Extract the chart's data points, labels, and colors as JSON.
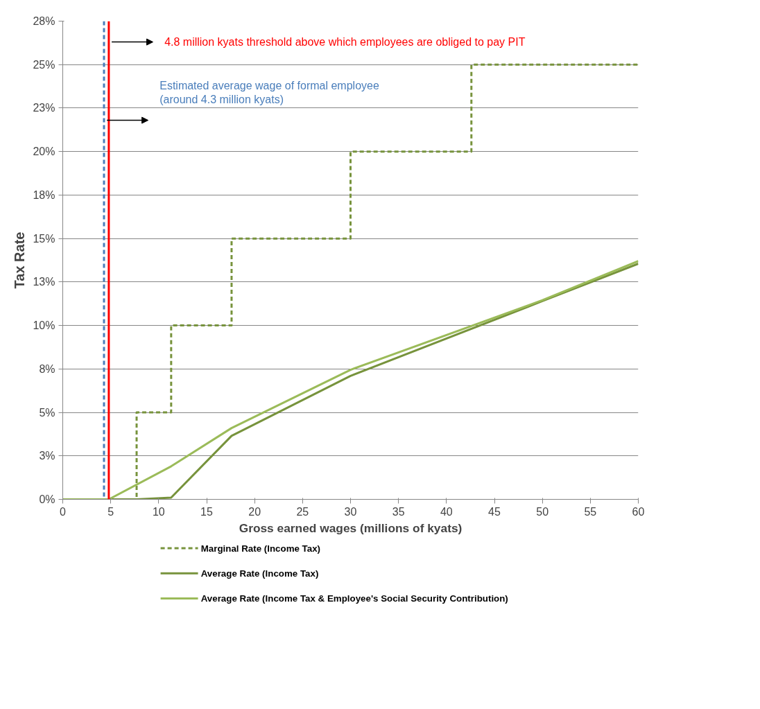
{
  "chart_data": {
    "type": "line",
    "xlabel": "Gross earned wages (millions of kyats)",
    "ylabel": "Tax Rate",
    "xlim": [
      0,
      60
    ],
    "xticks": [
      0,
      5,
      10,
      15,
      20,
      25,
      30,
      35,
      40,
      45,
      50,
      55,
      60
    ],
    "ylim": [
      0,
      27.5
    ],
    "yticks": [
      {
        "value": 0,
        "label": "0%"
      },
      {
        "value": 2.5,
        "label": "3%"
      },
      {
        "value": 5,
        "label": "5%"
      },
      {
        "value": 7.5,
        "label": "8%"
      },
      {
        "value": 10,
        "label": "10%"
      },
      {
        "value": 12.5,
        "label": "13%"
      },
      {
        "value": 15,
        "label": "15%"
      },
      {
        "value": 17.5,
        "label": "18%"
      },
      {
        "value": 20,
        "label": "20%"
      },
      {
        "value": 22.5,
        "label": "23%"
      },
      {
        "value": 25,
        "label": "25%"
      },
      {
        "value": 27.5,
        "label": "28%"
      }
    ],
    "grid": "y",
    "legend": "bottom",
    "series": [
      {
        "name": "Marginal Rate (Income Tax)",
        "type": "step",
        "line_style": "dashed",
        "color": "#77933c",
        "x": [
          0,
          7.7,
          11.3,
          17.6,
          30,
          42.6,
          60
        ],
        "values": [
          0,
          5,
          10,
          15,
          20,
          25,
          25
        ]
      },
      {
        "name": "Average Rate (Income Tax)",
        "line_style": "solid",
        "color": "#77933c",
        "x": [
          0,
          7.7,
          11.3,
          17.6,
          30,
          50,
          60
        ],
        "values": [
          0,
          0,
          0.1,
          3.65,
          7.1,
          11.4,
          13.55
        ]
      },
      {
        "name": "Average Rate (Income Tax & Employee's Social Security Contribution)",
        "line_style": "solid",
        "color": "#9bbb59",
        "x": [
          0,
          4.8,
          11.3,
          17.6,
          30,
          50,
          60
        ],
        "values": [
          0,
          0,
          1.9,
          4.1,
          7.45,
          11.45,
          13.7
        ]
      }
    ],
    "ref_lines": [
      {
        "axis": "x",
        "value": 4.8,
        "label": "4.8 million kyats threshold above which employees are obliged to pay PIT",
        "color": "#ff0000",
        "line_style": "solid"
      },
      {
        "axis": "x",
        "value": 4.3,
        "label": "Estimated average wage of formal employee\n(around 4.3 million kyats)",
        "color": "#4a7ebb",
        "line_style": "dashed"
      }
    ]
  }
}
